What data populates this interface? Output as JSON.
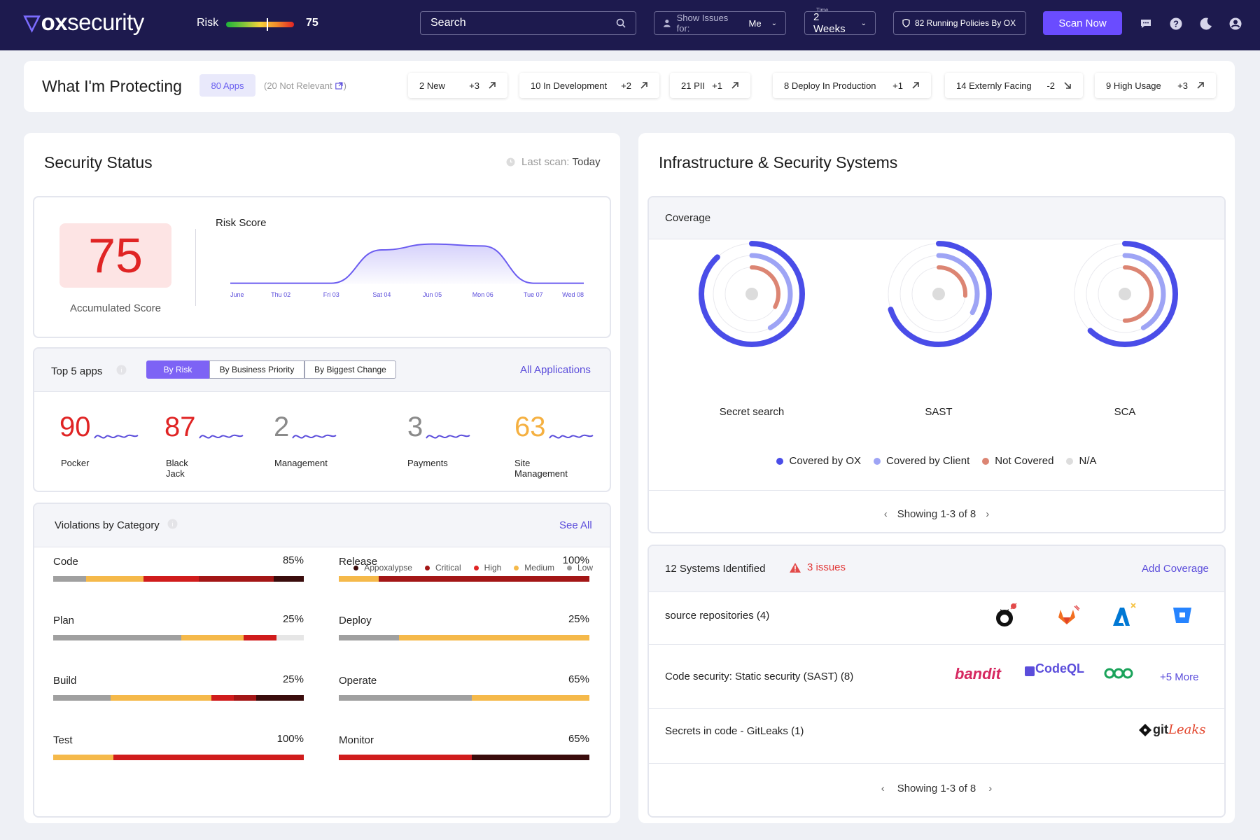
{
  "header": {
    "logo_main": "ox",
    "logo_rest": "security",
    "risk_label": "Risk",
    "risk_value": "75",
    "risk_level": 0.6,
    "search_placeholder": "Search",
    "show_issues_label": "Show Issues for:",
    "show_issues_value": "Me",
    "time_label": "Time",
    "time_value": "2 Weeks",
    "policies": "82 Running Policies By OX",
    "scan_button": "Scan Now"
  },
  "protecting": {
    "title": "What I'm Protecting",
    "apps": "80 Apps",
    "not_relevant": "(20 Not Relevant",
    "not_relevant_close": ")",
    "pills": [
      {
        "label": "2 New",
        "delta": "+3",
        "dir": "up"
      },
      {
        "label": "10 In Development",
        "delta": "+2",
        "dir": "up"
      },
      {
        "label": "21 PII",
        "delta": "+1",
        "dir": "up"
      },
      {
        "label": "8 Deploy In Production",
        "delta": "+1",
        "dir": "up"
      },
      {
        "label": "14 Externly Facing",
        "delta": "-2",
        "dir": "down"
      },
      {
        "label": "9 High Usage",
        "delta": "+3",
        "dir": "up"
      }
    ]
  },
  "security_status": {
    "title": "Security Status",
    "last_scan_label": "Last scan:",
    "last_scan_value": "Today",
    "score": "75",
    "score_label": "Accumulated Score",
    "risk_score_title": "Risk Score"
  },
  "chart_data": {
    "type": "area",
    "title": "Risk Score",
    "x": [
      "June",
      "Thu 02",
      "Fri 03",
      "Sat 04",
      "Jun 05",
      "Mon 06",
      "Tue 07",
      "Wed 08"
    ],
    "values": [
      2,
      2,
      2,
      70,
      82,
      78,
      2,
      2
    ],
    "ylim": [
      0,
      100
    ],
    "grid": false,
    "color": "#6b5cf0"
  },
  "top_apps": {
    "title": "Top 5 apps",
    "tabs": [
      "By Risk",
      "By Business Priority",
      "By Biggest Change"
    ],
    "all_link": "All Applications",
    "apps": [
      {
        "score": "90",
        "name": "Pocker",
        "color": "#e02424"
      },
      {
        "score": "87",
        "name": "Black Jack",
        "color": "#e02424"
      },
      {
        "score": "2",
        "name": "Management",
        "color": "#8a8a8a"
      },
      {
        "score": "3",
        "name": "Payments",
        "color": "#8a8a8a"
      },
      {
        "score": "63",
        "name": "Site  Management",
        "color": "#f5b040"
      }
    ]
  },
  "violations": {
    "title": "Violations by Category",
    "see_all": "See All",
    "legend": [
      {
        "name": "Appoxalypse",
        "color": "#3a0c0c"
      },
      {
        "name": "Critical",
        "color": "#a31616"
      },
      {
        "name": "High",
        "color": "#e02424"
      },
      {
        "name": "Medium",
        "color": "#f5b94a"
      },
      {
        "name": "Low",
        "color": "#9a9a9a"
      }
    ],
    "categories": [
      {
        "name": "Code",
        "pct": "85%",
        "segments": [
          0.13,
          0.23,
          0.22,
          0.3,
          0.12
        ],
        "colors": [
          "#a0a0a0",
          "#f5b94a",
          "#d01c1c",
          "#a31616",
          "#3a0c0c"
        ],
        "fill": 1.0
      },
      {
        "name": "Release",
        "pct": "100%",
        "segments": [
          0.16,
          0.84
        ],
        "colors": [
          "#f5b94a",
          "#a31616"
        ],
        "fill": 1.0
      },
      {
        "name": "Plan",
        "pct": "25%",
        "segments": [
          0.51,
          0.25,
          0.13,
          0.11
        ],
        "colors": [
          "#a0a0a0",
          "#f5b94a",
          "#d01c1c",
          "#e6e6e6"
        ],
        "fill": 1.0
      },
      {
        "name": "Deploy",
        "pct": "25%",
        "segments": [
          0.24,
          0.76
        ],
        "colors": [
          "#a0a0a0",
          "#f5b94a"
        ],
        "fill": 1.0
      },
      {
        "name": "Build",
        "pct": "25%",
        "segments": [
          0.23,
          0.4,
          0.09,
          0.09,
          0.19
        ],
        "colors": [
          "#a0a0a0",
          "#f5b94a",
          "#d01c1c",
          "#a31616",
          "#3a0c0c"
        ],
        "fill": 1.0
      },
      {
        "name": "Operate",
        "pct": "65%",
        "segments": [
          0.53,
          0.47
        ],
        "colors": [
          "#a0a0a0",
          "#f5b94a"
        ],
        "fill": 1.0
      },
      {
        "name": "Test",
        "pct": "100%",
        "segments": [
          0.24,
          0.76
        ],
        "colors": [
          "#f5b94a",
          "#d01c1c"
        ],
        "fill": 1.0
      },
      {
        "name": "Monitor",
        "pct": "65%",
        "segments": [
          0.53,
          0.47
        ],
        "colors": [
          "#d01c1c",
          "#3a0c0c"
        ],
        "fill": 1.0
      }
    ]
  },
  "infra": {
    "title": "Infrastructure & Security Systems",
    "coverage_title": "Coverage",
    "donuts": [
      {
        "name": "Secret search",
        "outer": 0.88,
        "middle": 0.42,
        "inner": 0.33
      },
      {
        "name": "SAST",
        "outer": 0.7,
        "middle": 0.33,
        "inner": 0.26
      },
      {
        "name": "SCA",
        "outer": 0.62,
        "middle": 0.42,
        "inner": 0.5
      }
    ],
    "legend": [
      {
        "name": "Covered by OX",
        "color": "#4a4de8"
      },
      {
        "name": "Covered by Client",
        "color": "#9ea4f5"
      },
      {
        "name": "Not Covered",
        "color": "#dc8573"
      },
      {
        "name": "N/A",
        "color": "#dddddd"
      }
    ],
    "pagination": "Showing 1-3 of 8",
    "systems_count": "12 Systems Identified",
    "issues": "3 issues",
    "add_coverage": "Add Coverage",
    "rows": [
      {
        "label": "source repositories (4)"
      },
      {
        "label": "Code security: Static security (SAST) (8)",
        "logos": [
          "bandit",
          "CodeQL"
        ],
        "more": "+5 More"
      },
      {
        "label": "Secrets in code - GitLeaks (1)",
        "logo_git": "git",
        "logo_leaks": "Leaks"
      }
    ],
    "pagination2": "Showing 1-3 of 8"
  }
}
